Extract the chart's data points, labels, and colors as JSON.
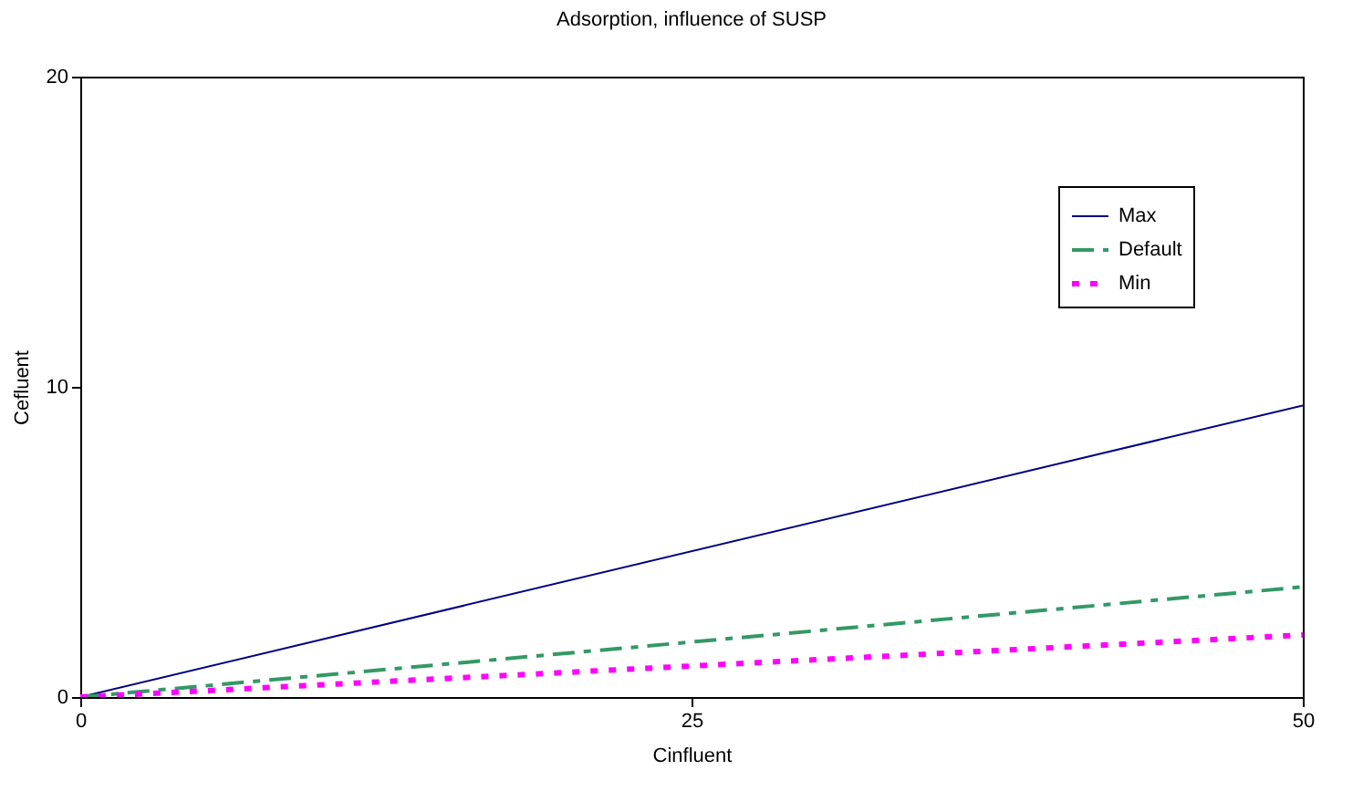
{
  "chart_data": {
    "type": "line",
    "title": "Adsorption, influence of SUSP",
    "xlabel": "Cinfluent",
    "ylabel": "Cefluent",
    "x": [
      0,
      50
    ],
    "series": [
      {
        "name": "Max",
        "color": "#000080",
        "line_style": "solid",
        "values": [
          0,
          9.4
        ]
      },
      {
        "name": "Default",
        "color": "#339966",
        "line_style": "dashdot",
        "values": [
          0,
          3.55
        ]
      },
      {
        "name": "Min",
        "color": "#ff00ff",
        "line_style": "dotted",
        "values": [
          0,
          2.0
        ]
      }
    ],
    "xlim": [
      0,
      50
    ],
    "xticks": [
      0,
      25,
      50
    ],
    "ylim": [
      0,
      20
    ],
    "yticks": [
      0,
      10,
      20
    ],
    "grid": false,
    "legend": "top right"
  }
}
